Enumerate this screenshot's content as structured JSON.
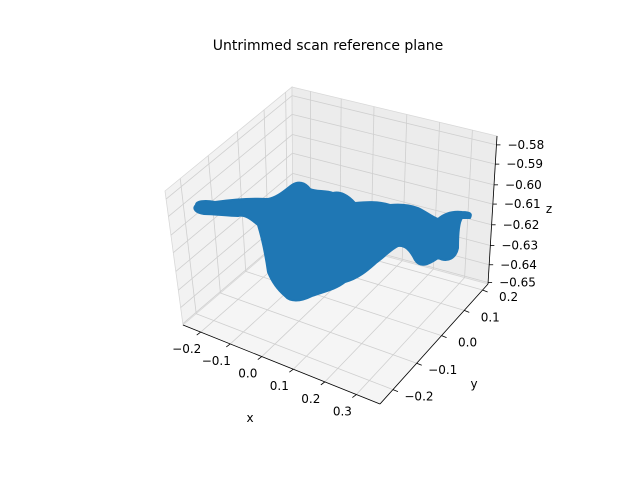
{
  "chart_data": {
    "type": "surface3d",
    "title": "Untrimmed scan reference plane",
    "xlabel": "x",
    "ylabel": "y",
    "zlabel": "z",
    "x_ticks": [
      "−0.2",
      "−0.1",
      "0.0",
      "0.1",
      "0.2",
      "0.3"
    ],
    "y_ticks": [
      "−0.2",
      "−0.1",
      "0.0",
      "0.1",
      "0.2"
    ],
    "z_ticks": [
      "−0.58",
      "−0.59",
      "−0.60",
      "−0.61",
      "−0.62",
      "−0.63",
      "−0.64",
      "−0.65"
    ],
    "xlim": [
      -0.27,
      0.33
    ],
    "ylim": [
      -0.24,
      0.24
    ],
    "zlim": [
      -0.65,
      -0.58
    ],
    "grid": true,
    "surface_color": "#1f77b4"
  }
}
